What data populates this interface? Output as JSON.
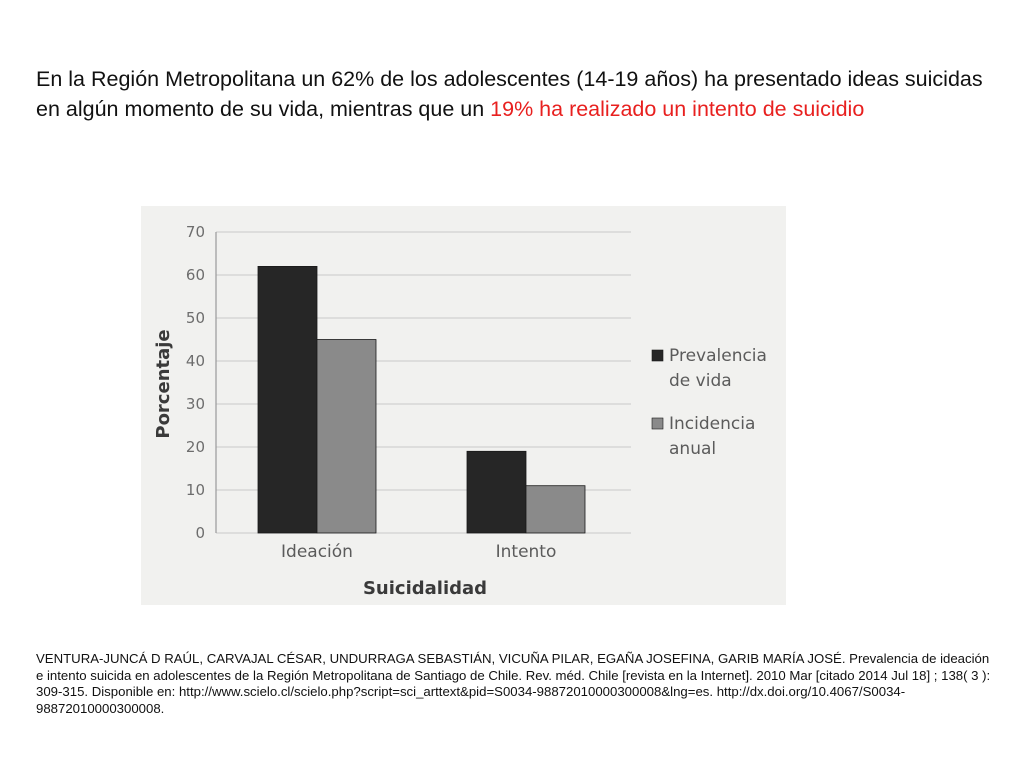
{
  "headline": {
    "text_black": "En la Región Metropolitana un 62% de los adolescentes (14-19 años) ha presentado ideas suicidas en algún momento de su vida, mientras que un ",
    "text_red": "19% ha realizado un intento de suicidio"
  },
  "chart_data": {
    "type": "bar",
    "categories": [
      "Ideación",
      "Intento"
    ],
    "series": [
      {
        "name": "Prevalencia de vida",
        "values": [
          62,
          19
        ],
        "color": "#262626"
      },
      {
        "name": "Incidencia anual",
        "values": [
          45,
          11
        ],
        "color": "#8a8a8a"
      }
    ],
    "xlabel": "Suicidalidad",
    "ylabel": "Porcentaje",
    "ylim": [
      0,
      70
    ],
    "yticks": [
      0,
      10,
      20,
      30,
      40,
      50,
      60,
      70
    ],
    "grid": true,
    "legend_position": "right",
    "legend_lines": [
      [
        "Prevalencia",
        "de vida"
      ],
      [
        "Incidencia",
        "anual"
      ]
    ]
  },
  "citation": "VENTURA-JUNCÁ D RAÚL, CARVAJAL CÉSAR, UNDURRAGA SEBASTIÁN, VICUÑA PILAR, EGAÑA JOSEFINA, GARIB MARÍA JOSÉ. Prevalencia de ideación e intento suicida en adolescentes de la Región Metropolitana de Santiago de Chile. Rev. méd. Chile [revista en la Internet]. 2010 Mar [citado 2014 Jul 18] ; 138( 3 ): 309-315. Disponible en: http://www.scielo.cl/scielo.php?script=sci_arttext&pid=S0034-98872010000300008&lng=es. http://dx.doi.org/10.4067/S0034-98872010000300008."
}
